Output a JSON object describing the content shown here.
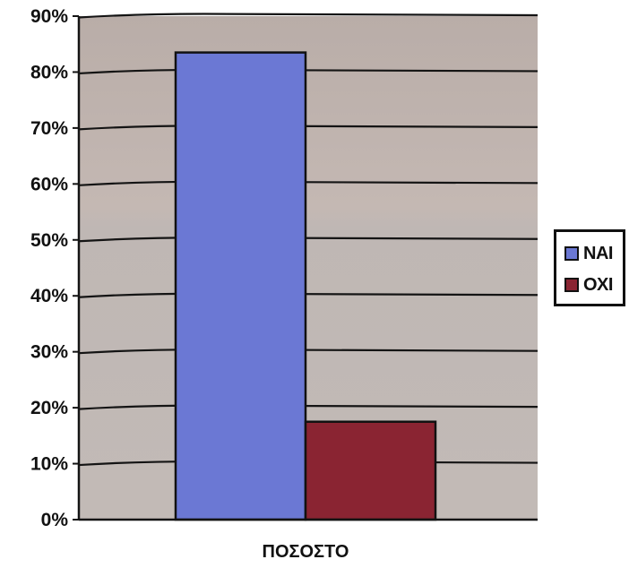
{
  "chart_data": {
    "type": "bar",
    "title": "",
    "xlabel": "",
    "ylabel": "",
    "categories": [
      "ΠΟΣΟΣΤΟ"
    ],
    "series": [
      {
        "name": "ΝΑΙ",
        "values": [
          83.5
        ],
        "color": "#6b78d4"
      },
      {
        "name": "ΟΧΙ",
        "values": [
          17.5
        ],
        "color": "#8a2432"
      }
    ],
    "ylim": [
      0,
      90
    ],
    "ytick_step": 10,
    "ytick_suffix": "%",
    "grid": true,
    "legend_position": "right",
    "plot_background": "#bdb3ae"
  }
}
